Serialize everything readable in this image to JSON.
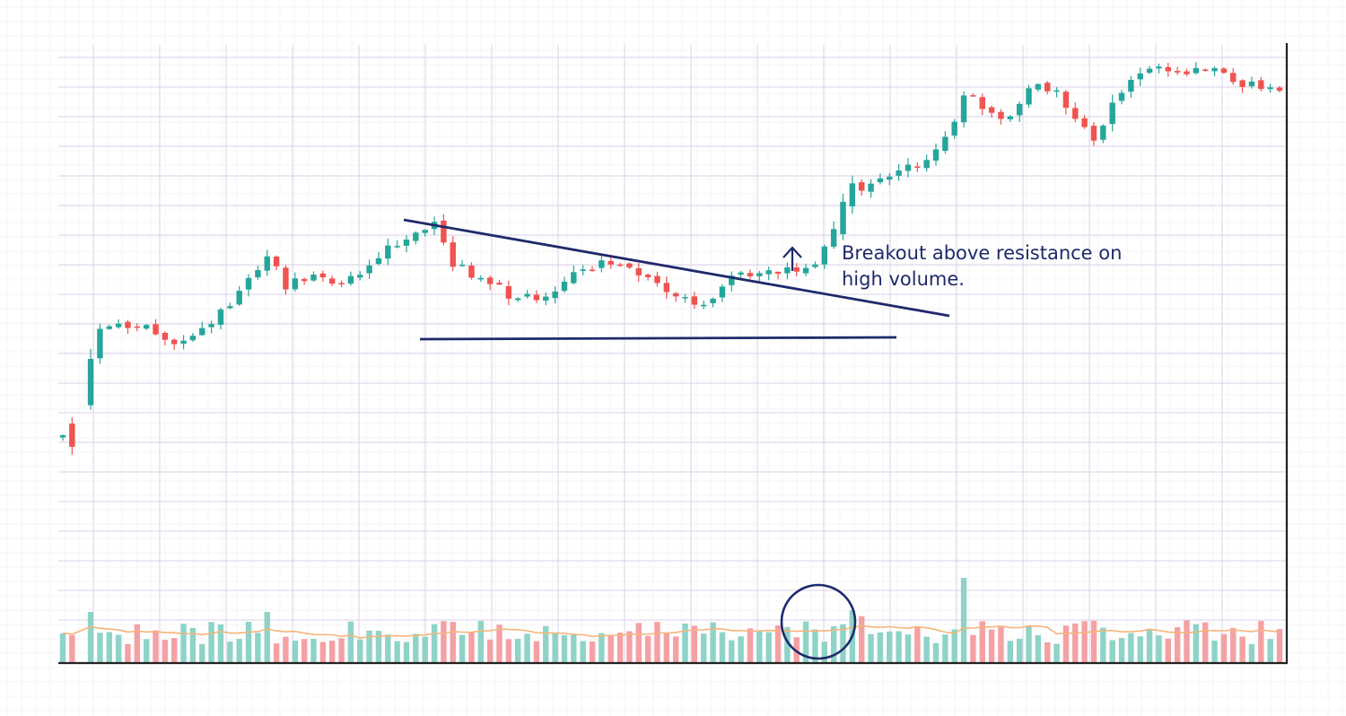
{
  "chart_data": {
    "type": "candlestick",
    "title": "",
    "xlabel": "",
    "ylabel": "",
    "x_axis_ticks_labeled": false,
    "y_axis_ticks_labeled": false,
    "grid": true,
    "colors": {
      "up": "#26a69a",
      "down": "#ef5350",
      "volume_up": "#8fd3c8",
      "volume_down": "#f4a1a4",
      "volume_ma": "#f5b57a",
      "annotation": "#1f2a6b",
      "grid_major": "#d9d2ea",
      "grid_minor": "#eeeeee",
      "axis": "#222222"
    },
    "annotations": {
      "text_line1": "Breakout above resistance on",
      "text_line2": "high volume.",
      "resistance_line": "descending resistance trendline",
      "support_line": "horizontal support line",
      "arrow": "up",
      "volume_circle": "breakout volume highlight"
    },
    "price_path": [
      [
        0,
        56
      ],
      [
        1,
        72
      ],
      [
        3,
        79
      ],
      [
        8,
        81
      ],
      [
        12,
        77
      ],
      [
        15,
        80
      ],
      [
        18,
        84
      ],
      [
        22,
        96
      ],
      [
        24,
        88
      ],
      [
        27,
        92
      ],
      [
        30,
        89
      ],
      [
        35,
        97
      ],
      [
        38,
        100
      ],
      [
        40,
        102
      ],
      [
        42,
        94
      ],
      [
        45,
        90
      ],
      [
        48,
        87
      ],
      [
        51,
        86
      ],
      [
        55,
        91
      ],
      [
        58,
        94
      ],
      [
        61,
        93
      ],
      [
        64,
        89
      ],
      [
        67,
        86
      ],
      [
        69,
        85
      ],
      [
        71,
        89
      ],
      [
        73,
        92
      ],
      [
        75,
        91
      ],
      [
        78,
        92
      ],
      [
        81,
        93
      ],
      [
        84,
        106
      ],
      [
        86,
        110
      ],
      [
        88,
        113
      ],
      [
        90,
        113
      ],
      [
        93,
        116
      ],
      [
        95,
        120
      ],
      [
        97,
        130
      ],
      [
        99,
        128
      ],
      [
        101,
        125
      ],
      [
        103,
        128
      ],
      [
        105,
        133
      ],
      [
        107,
        131
      ],
      [
        109,
        125
      ],
      [
        111,
        121
      ],
      [
        113,
        128
      ],
      [
        115,
        134
      ],
      [
        117,
        136
      ],
      [
        119,
        136
      ],
      [
        121,
        135
      ],
      [
        124,
        137
      ],
      [
        126,
        132
      ],
      [
        128,
        133
      ],
      [
        130,
        131
      ],
      [
        131,
        131
      ]
    ],
    "volume_pattern": "average volume with a notable spike at the breakout"
  }
}
